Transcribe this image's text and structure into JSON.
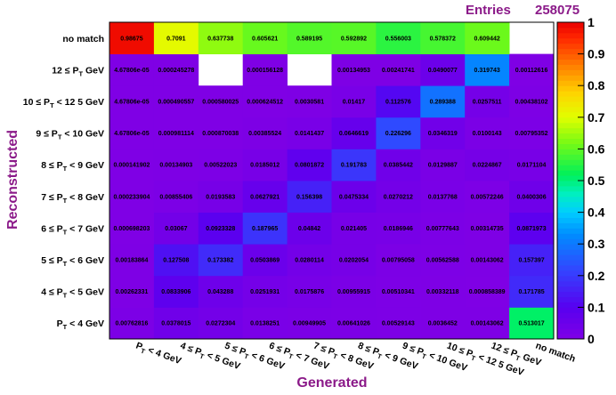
{
  "stats": {
    "entries_label": "Entries",
    "entries_value": "258075"
  },
  "chart_data": {
    "type": "heatmap",
    "title": "",
    "xlabel": "Generated",
    "ylabel": "Reconstructed",
    "x_categories": [
      "P_T < 4 GeV",
      "4 ≤ P_T < 5 GeV",
      "5 ≤ P_T < 6 GeV",
      "6 ≤ P_T < 7 GeV",
      "7 ≤ P_T < 8 GeV",
      "8 ≤ P_T < 9 GeV",
      "9 ≤ P_T < 10 GeV",
      "10 ≤ P_T < 12.5 GeV",
      "12 ≤ P_T GeV",
      "no match"
    ],
    "y_categories": [
      "P_T < 4 GeV",
      "4 ≤ P_T < 5 GeV",
      "5 ≤ P_T < 6 GeV",
      "6 ≤ P_T < 7 GeV",
      "7 ≤ P_T < 8 GeV",
      "8 ≤ P_T < 9 GeV",
      "9 ≤ P_T < 10 GeV",
      "10 ≤ P_T < 12.5 GeV",
      "12 ≤ P_T GeV",
      "no match"
    ],
    "x_tick_labels": [
      {
        "main": "P",
        "sub": "T",
        "rest": " < 4 GeV"
      },
      {
        "main": "4 ≤ P",
        "sub": "T",
        "rest": " < 5 GeV"
      },
      {
        "main": "5 ≤ P",
        "sub": "T",
        "rest": " < 6 GeV"
      },
      {
        "main": "6 ≤ P",
        "sub": "T",
        "rest": " < 7 GeV"
      },
      {
        "main": "7 ≤ P",
        "sub": "T",
        "rest": " < 8 GeV"
      },
      {
        "main": "8 ≤ P",
        "sub": "T",
        "rest": " < 9 GeV"
      },
      {
        "main": "9 ≤ P",
        "sub": "T",
        "rest": " < 10 GeV"
      },
      {
        "main": "10 ≤ P",
        "sub": "T",
        "rest": " < 12 5 GeV"
      },
      {
        "main": "12 ≤ P",
        "sub": "T",
        "rest": " GeV"
      },
      {
        "main": "no match",
        "sub": "",
        "rest": ""
      }
    ],
    "y_tick_labels": [
      {
        "main": "P",
        "sub": "T",
        "rest": " < 4 GeV"
      },
      {
        "main": "4 ≤ P",
        "sub": "T",
        "rest": " < 5 GeV"
      },
      {
        "main": "5 ≤ P",
        "sub": "T",
        "rest": " < 6 GeV"
      },
      {
        "main": "6 ≤ P",
        "sub": "T",
        "rest": " < 7 GeV"
      },
      {
        "main": "7 ≤ P",
        "sub": "T",
        "rest": " < 8 GeV"
      },
      {
        "main": "8 ≤ P",
        "sub": "T",
        "rest": " < 9 GeV"
      },
      {
        "main": "9 ≤ P",
        "sub": "T",
        "rest": " < 10 GeV"
      },
      {
        "main": "10 ≤ P",
        "sub": "T",
        "rest": " < 12 5 GeV"
      },
      {
        "main": "12 ≤ P",
        "sub": "T",
        "rest": " GeV"
      },
      {
        "main": "no match",
        "sub": "",
        "rest": ""
      }
    ],
    "rows": [
      {
        "labels": [
          "0.00762816",
          "0.0378015",
          "0.0272304",
          "0.0138251",
          "0.00949905",
          "0.00641026",
          "0.00529143",
          "0.0036452",
          "0.00143062",
          "0.513017"
        ],
        "values": [
          0.00762816,
          0.0378015,
          0.0272304,
          0.0138251,
          0.00949905,
          0.00641026,
          0.00529143,
          0.0036452,
          0.00143062,
          0.513017
        ]
      },
      {
        "labels": [
          "0.00262331",
          "0.0833906",
          "0.043288",
          "0.0251931",
          "0.0175876",
          "0.00955915",
          "0.00510341",
          "0.00332118",
          "0.000858389",
          "0.171785"
        ],
        "values": [
          0.00262331,
          0.0833906,
          0.043288,
          0.0251931,
          0.0175876,
          0.00955915,
          0.00510341,
          0.00332118,
          0.000858389,
          0.171785
        ]
      },
      {
        "labels": [
          "0.00183864",
          "0.127508",
          "0.173382",
          "0.0503869",
          "0.0280114",
          "0.0202054",
          "0.00795058",
          "0.00562588",
          "0.00143062",
          "0.157397"
        ],
        "values": [
          0.00183864,
          0.127508,
          0.173382,
          0.0503869,
          0.0280114,
          0.0202054,
          0.00795058,
          0.00562588,
          0.00143062,
          0.157397
        ]
      },
      {
        "labels": [
          "0.000698203",
          "0.03067",
          "0.0923328",
          "0.187965",
          "0.04842",
          "0.021405",
          "0.0186946",
          "0.00777643",
          "0.00314735",
          "0.0871973"
        ],
        "values": [
          0.000698203,
          0.03067,
          0.0923328,
          0.187965,
          0.04842,
          0.021405,
          0.0186946,
          0.00777643,
          0.00314735,
          0.0871973
        ]
      },
      {
        "labels": [
          "0.000233904",
          "0.00855406",
          "0.0193583",
          "0.0627921",
          "0.156398",
          "0.0475334",
          "0.0270212",
          "0.0137768",
          "0.00572246",
          "0.0400306"
        ],
        "values": [
          0.000233904,
          0.00855406,
          0.0193583,
          0.0627921,
          0.156398,
          0.0475334,
          0.0270212,
          0.0137768,
          0.00572246,
          0.0400306
        ]
      },
      {
        "labels": [
          "0.000141902",
          "0.00134903",
          "0.00522023",
          "0.0185012",
          "0.0801872",
          "0.191783",
          "0.0385442",
          "0.0129887",
          "0.0224867",
          "0.0171104"
        ],
        "values": [
          0.000141902,
          0.00134903,
          0.00522023,
          0.0185012,
          0.0801872,
          0.191783,
          0.0385442,
          0.0129887,
          0.0224867,
          0.0171104
        ]
      },
      {
        "labels": [
          "4.67806e-05",
          "0.000981114",
          "0.000870038",
          "0.00385524",
          "0.0141437",
          "0.0646619",
          "0.226296",
          "0.0346319",
          "0.0100143",
          "0.00795352"
        ],
        "values": [
          4.67806e-05,
          0.000981114,
          0.000870038,
          0.00385524,
          0.0141437,
          0.0646619,
          0.226296,
          0.0346319,
          0.0100143,
          0.00795352
        ]
      },
      {
        "labels": [
          "4.67806e-05",
          "0.000490557",
          "0.000580025",
          "0.000624512",
          "0.0030581",
          "0.01417",
          "0.112576",
          "0.289388",
          "0.0257511",
          "0.00438102"
        ],
        "values": [
          4.67806e-05,
          0.000490557,
          0.000580025,
          0.000624512,
          0.0030581,
          0.01417,
          0.112576,
          0.289388,
          0.0257511,
          0.00438102
        ]
      },
      {
        "labels": [
          "4.67806e-05",
          "0.000245278",
          "",
          "0.000156128",
          "",
          "0.00134953",
          "0.00241741",
          "0.0490077",
          "0.319743",
          "0.00112616"
        ],
        "values": [
          4.67806e-05,
          0.000245278,
          null,
          0.000156128,
          null,
          0.00134953,
          0.00241741,
          0.0490077,
          0.319743,
          0.00112616
        ]
      },
      {
        "labels": [
          "0.98675",
          "0.7091",
          "0.637738",
          "0.605621",
          "0.589195",
          "0.592892",
          "0.556003",
          "0.578372",
          "0.609442",
          ""
        ],
        "values": [
          0.98675,
          0.7091,
          0.637738,
          0.605621,
          0.589195,
          0.592892,
          0.556003,
          0.578372,
          0.609442,
          null
        ]
      }
    ],
    "zlim": [
      0,
      1
    ],
    "z_ticks": [
      "0",
      "0.1",
      "0.2",
      "0.3",
      "0.4",
      "0.5",
      "0.6",
      "0.7",
      "0.8",
      "0.9",
      "1"
    ],
    "grid": false,
    "legend": "right color bar"
  }
}
